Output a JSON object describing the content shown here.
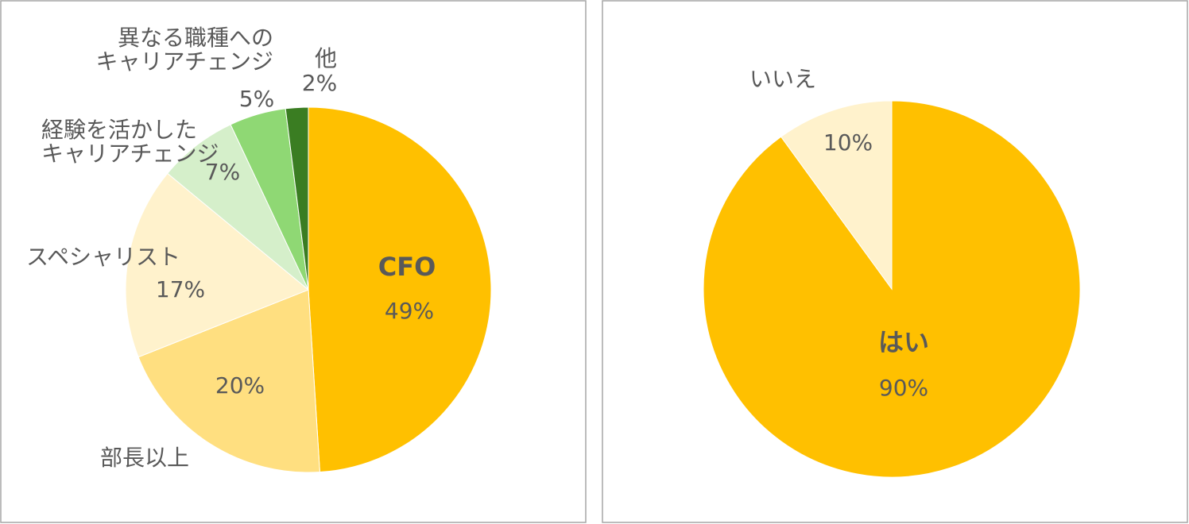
{
  "chart_data": [
    {
      "type": "pie",
      "categories": [
        "CFO",
        "部長以上",
        "スペシャリスト",
        "経験を活かした\nキャリアチェンジ",
        "異なる職種への\nキャリアチェンジ",
        "他"
      ],
      "values": [
        49,
        20,
        17,
        7,
        5,
        2
      ],
      "value_labels": [
        "49%",
        "20%",
        "17%",
        "7%",
        "5%",
        "2%"
      ],
      "colors": [
        "#FFC000",
        "#FFDF80",
        "#FFF2CC",
        "#D5EFCA",
        "#8FD874",
        "#3A7D22"
      ]
    },
    {
      "type": "pie",
      "categories": [
        "はい",
        "いいえ"
      ],
      "values": [
        90,
        10
      ],
      "value_labels": [
        "90%",
        "10%"
      ],
      "colors": [
        "#FFC000",
        "#FFF2CC"
      ]
    }
  ]
}
